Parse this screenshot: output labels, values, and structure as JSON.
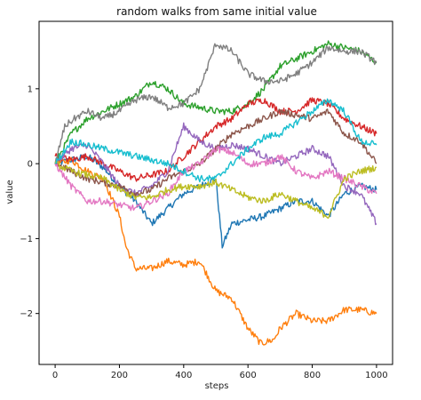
{
  "chart_data": {
    "type": "line",
    "title": "random walks from same initial value",
    "xlabel": "steps",
    "ylabel": "value",
    "xlim": [
      -50,
      1050
    ],
    "ylim": [
      -2.68,
      1.9
    ],
    "xticks": [
      0,
      200,
      400,
      600,
      800,
      1000
    ],
    "yticks": [
      -2,
      -1,
      0,
      1
    ],
    "xtick_labels": [
      "0",
      "200",
      "400",
      "600",
      "800",
      "1000"
    ],
    "ytick_labels": [
      "−2",
      "−1",
      "0",
      "1"
    ],
    "grid": false,
    "legend": "none",
    "series": [
      {
        "color": "#1f77b4",
        "x": [
          0,
          50,
          100,
          150,
          200,
          250,
          300,
          350,
          400,
          450,
          500,
          520,
          550,
          600,
          650,
          700,
          750,
          800,
          850,
          900,
          950,
          1000
        ],
        "y": [
          0,
          0.05,
          0.1,
          -0.05,
          -0.3,
          -0.5,
          -0.8,
          -0.6,
          -0.4,
          -0.3,
          -0.2,
          -1.1,
          -0.8,
          -0.75,
          -0.7,
          -0.6,
          -0.5,
          -0.5,
          -0.7,
          -0.4,
          -0.3,
          -0.35
        ]
      },
      {
        "color": "#ff7f0e",
        "x": [
          0,
          50,
          100,
          150,
          200,
          220,
          250,
          300,
          350,
          400,
          450,
          500,
          550,
          600,
          640,
          680,
          700,
          750,
          800,
          850,
          900,
          950,
          1000
        ],
        "y": [
          0,
          0.05,
          -0.1,
          -0.2,
          -0.7,
          -1.1,
          -1.4,
          -1.4,
          -1.3,
          -1.35,
          -1.3,
          -1.7,
          -1.8,
          -2.2,
          -2.4,
          -2.35,
          -2.2,
          -2.0,
          -2.1,
          -2.1,
          -1.95,
          -1.95,
          -2.0
        ]
      },
      {
        "color": "#2ca02c",
        "x": [
          0,
          50,
          100,
          150,
          200,
          250,
          300,
          350,
          400,
          450,
          500,
          550,
          600,
          650,
          700,
          750,
          800,
          850,
          900,
          950,
          1000
        ],
        "y": [
          0,
          0.4,
          0.6,
          0.7,
          0.8,
          0.9,
          1.1,
          1.0,
          0.8,
          0.75,
          0.7,
          0.7,
          0.8,
          1.0,
          1.3,
          1.4,
          1.5,
          1.6,
          1.55,
          1.5,
          1.35
        ]
      },
      {
        "color": "#d62728",
        "x": [
          0,
          50,
          100,
          150,
          200,
          250,
          300,
          350,
          400,
          450,
          500,
          550,
          600,
          650,
          700,
          750,
          800,
          850,
          900,
          950,
          1000
        ],
        "y": [
          0.1,
          0.05,
          0.1,
          0.0,
          -0.1,
          -0.2,
          -0.15,
          -0.1,
          0.1,
          0.3,
          0.5,
          0.6,
          0.8,
          0.85,
          0.7,
          0.7,
          0.85,
          0.8,
          0.6,
          0.5,
          0.4
        ]
      },
      {
        "color": "#9467bd",
        "x": [
          0,
          50,
          100,
          150,
          200,
          250,
          300,
          350,
          400,
          450,
          500,
          550,
          600,
          650,
          700,
          750,
          800,
          850,
          900,
          950,
          1000
        ],
        "y": [
          0,
          0.2,
          0.25,
          0.0,
          -0.3,
          -0.4,
          -0.3,
          -0.1,
          0.5,
          0.3,
          0.2,
          0.25,
          0.2,
          0.1,
          0.0,
          0.1,
          0.2,
          0.1,
          -0.3,
          -0.4,
          -0.8
        ]
      },
      {
        "color": "#8c564b",
        "x": [
          0,
          50,
          100,
          150,
          200,
          250,
          300,
          350,
          400,
          450,
          500,
          550,
          600,
          650,
          700,
          750,
          800,
          850,
          900,
          950,
          1000
        ],
        "y": [
          0,
          -0.1,
          -0.2,
          -0.25,
          -0.3,
          -0.4,
          -0.35,
          -0.2,
          -0.1,
          0.0,
          0.2,
          0.4,
          0.5,
          0.6,
          0.7,
          0.65,
          0.6,
          0.7,
          0.4,
          0.3,
          0.0
        ]
      },
      {
        "color": "#e377c2",
        "x": [
          0,
          50,
          100,
          150,
          200,
          250,
          300,
          350,
          400,
          450,
          500,
          550,
          600,
          650,
          700,
          750,
          800,
          850,
          900,
          950,
          1000
        ],
        "y": [
          0,
          -0.3,
          -0.5,
          -0.5,
          -0.55,
          -0.6,
          -0.5,
          -0.4,
          -0.1,
          0.0,
          0.2,
          0.15,
          0.0,
          0.0,
          0.1,
          -0.1,
          -0.2,
          -0.1,
          -0.2,
          -0.3,
          -0.4
        ]
      },
      {
        "color": "#7f7f7f",
        "x": [
          0,
          30,
          60,
          100,
          150,
          200,
          250,
          300,
          350,
          400,
          450,
          500,
          550,
          600,
          650,
          700,
          750,
          800,
          850,
          900,
          950,
          1000
        ],
        "y": [
          0,
          0.5,
          0.6,
          0.7,
          0.6,
          0.7,
          0.85,
          0.9,
          0.75,
          0.8,
          1.0,
          1.6,
          1.5,
          1.2,
          1.1,
          1.1,
          1.2,
          1.35,
          1.55,
          1.5,
          1.5,
          1.35
        ]
      },
      {
        "color": "#bcbd22",
        "x": [
          0,
          50,
          100,
          150,
          200,
          250,
          300,
          350,
          400,
          450,
          500,
          550,
          600,
          650,
          700,
          750,
          800,
          850,
          900,
          950,
          1000
        ],
        "y": [
          0,
          -0.1,
          -0.15,
          -0.2,
          -0.35,
          -0.45,
          -0.45,
          -0.35,
          -0.3,
          -0.3,
          -0.25,
          -0.35,
          -0.45,
          -0.5,
          -0.4,
          -0.5,
          -0.6,
          -0.7,
          -0.2,
          -0.1,
          -0.05
        ]
      },
      {
        "color": "#17becf",
        "x": [
          0,
          50,
          100,
          150,
          200,
          250,
          300,
          350,
          400,
          450,
          500,
          550,
          600,
          650,
          700,
          750,
          800,
          850,
          900,
          950,
          1000
        ],
        "y": [
          0,
          0.3,
          0.25,
          0.2,
          0.15,
          0.1,
          0.05,
          0.0,
          -0.1,
          -0.2,
          -0.2,
          0.0,
          0.2,
          0.35,
          0.4,
          0.55,
          0.7,
          0.85,
          0.7,
          0.3,
          0.25
        ]
      }
    ]
  }
}
